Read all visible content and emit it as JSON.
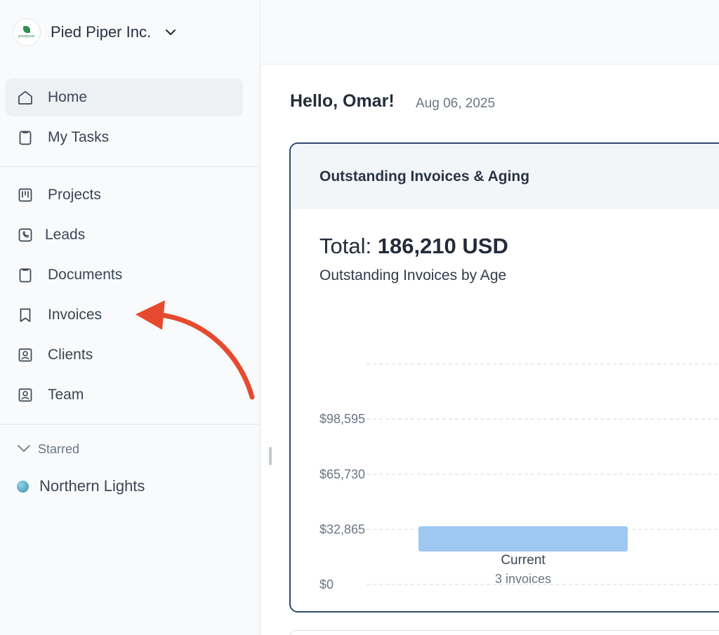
{
  "org": {
    "name": "Pied Piper Inc.",
    "logo_text": "piedpiper"
  },
  "sidebar": {
    "primary": [
      {
        "label": "Home",
        "icon": "home-icon",
        "active": true
      },
      {
        "label": "My Tasks",
        "icon": "clipboard-icon",
        "active": false
      }
    ],
    "secondary": [
      {
        "label": "Projects",
        "icon": "kanban-icon"
      },
      {
        "label": "Leads",
        "icon": "phone-icon"
      },
      {
        "label": "Documents",
        "icon": "clipboard-icon"
      },
      {
        "label": "Invoices",
        "icon": "bookmark-icon"
      },
      {
        "label": "Clients",
        "icon": "contact-card-icon"
      },
      {
        "label": "Team",
        "icon": "contact-card-icon"
      }
    ],
    "starred": {
      "heading": "Starred",
      "items": [
        {
          "label": "Northern Lights"
        }
      ]
    }
  },
  "main": {
    "greeting": "Hello, Omar!",
    "date": "Aug 06, 2025"
  },
  "card": {
    "title": "Outstanding Invoices & Aging",
    "total_prefix": "Total: ",
    "total_amount": "186,210 USD",
    "subtitle": "Outstanding Invoices by Age"
  },
  "chart_data": {
    "type": "bar",
    "categories": [
      "Current"
    ],
    "category_sublabels": [
      "3 invoices"
    ],
    "values": [
      46000
    ],
    "y_ticks": [
      "$0",
      "$32,865",
      "$65,730",
      "$98,595"
    ],
    "y_tick_values": [
      0,
      32865,
      65730,
      98595
    ],
    "ylim": [
      0,
      131460
    ],
    "grid": true,
    "bar_color": "#9ec8f2"
  },
  "colors": {
    "card_border": "#2f4a72",
    "arrow": "#e64a2e",
    "sidebar_bg": "#f8fafb"
  }
}
